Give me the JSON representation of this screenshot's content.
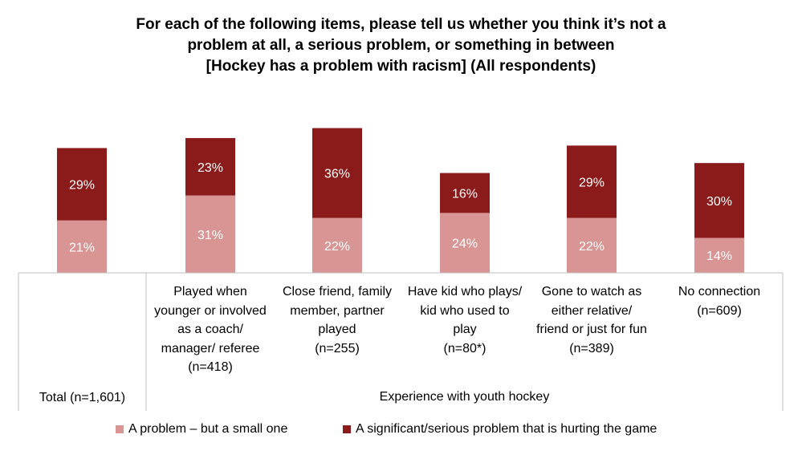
{
  "title_lines": [
    "For each of the following items, please tell us whether you think it’s not a",
    "problem at all, a serious problem, or something in between",
    "[Hockey has a problem with racism] (All respondents)"
  ],
  "chart_data": {
    "type": "bar",
    "stacked": true,
    "categories": [
      "Total (n=1,601)",
      "Played when younger or involved as a coach/ manager/ referee (n=418)",
      "Close friend, family member, partner played (n=255)",
      "Have kid who plays/ kid who used to play (n=80*)",
      "Gone to watch as either relative/ friend or just for fun (n=389)",
      "No connection (n=609)"
    ],
    "category_label_lines": [
      [
        "Total (n=1,601)"
      ],
      [
        "Played when",
        "younger or involved",
        "as a coach/",
        "manager/ referee",
        "(n=418)"
      ],
      [
        "Close friend, family",
        "member, partner",
        "played",
        "(n=255)"
      ],
      [
        "Have kid who plays/",
        "kid who used to",
        "play",
        "(n=80*)"
      ],
      [
        "Gone to watch as",
        "either relative/",
        "friend or just for fun",
        "(n=389)"
      ],
      [
        "No connection",
        "(n=609)"
      ]
    ],
    "series": [
      {
        "name": "A problem – but a small one",
        "color": "#d99594",
        "values": [
          21,
          31,
          22,
          24,
          22,
          14
        ]
      },
      {
        "name": "A significant/serious problem that is hurting the game",
        "color": "#8b1a1a",
        "values": [
          29,
          23,
          36,
          16,
          29,
          30
        ]
      }
    ],
    "data_label_suffix": "%",
    "group_labels": [
      "Experience with youth hockey"
    ],
    "ylim": [
      0,
      60
    ],
    "grid": false,
    "legend_position": "bottom"
  }
}
